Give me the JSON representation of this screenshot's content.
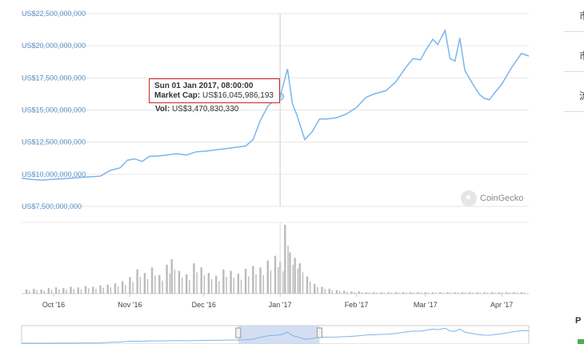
{
  "chart_data": {
    "type": "line",
    "title": "",
    "xlabel": "",
    "ylabel": "",
    "ylim": [
      7500000000,
      22500000000
    ],
    "yticks": [
      {
        "value": 22500000000,
        "label": "US$22,500,000,000"
      },
      {
        "value": 20000000000,
        "label": "US$20,000,000,000"
      },
      {
        "value": 17500000000,
        "label": "US$17,500,000,000"
      },
      {
        "value": 15000000000,
        "label": "US$15,000,000,000"
      },
      {
        "value": 12500000000,
        "label": "US$12,500,000,000"
      },
      {
        "value": 10000000000,
        "label": "US$10,000,000,000"
      },
      {
        "value": 7500000000,
        "label": "US$7,500,000,000"
      }
    ],
    "xrange": [
      "2016-09-18",
      "2017-04-12"
    ],
    "xticks": [
      {
        "date": "2016-10-01",
        "label": "Oct '16"
      },
      {
        "date": "2016-11-01",
        "label": "Nov '16"
      },
      {
        "date": "2016-12-01",
        "label": "Dec '16"
      },
      {
        "date": "2017-01-01",
        "label": "Jan '17"
      },
      {
        "date": "2017-02-01",
        "label": "Feb '17"
      },
      {
        "date": "2017-03-01",
        "label": "Mar '17"
      },
      {
        "date": "2017-04-01",
        "label": "Apr '17"
      }
    ],
    "crosshair_date": "2017-01-01",
    "series": [
      {
        "color": "#7cb5ec",
        "points": [
          [
            "2016-09-18",
            9700000000
          ],
          [
            "2016-09-22",
            9600000000
          ],
          [
            "2016-09-26",
            9550000000
          ],
          [
            "2016-09-30",
            9600000000
          ],
          [
            "2016-10-04",
            9650000000
          ],
          [
            "2016-10-08",
            9700000000
          ],
          [
            "2016-10-12",
            9750000000
          ],
          [
            "2016-10-16",
            9800000000
          ],
          [
            "2016-10-20",
            9850000000
          ],
          [
            "2016-10-24",
            10300000000
          ],
          [
            "2016-10-28",
            10500000000
          ],
          [
            "2016-10-31",
            11100000000
          ],
          [
            "2016-11-03",
            11200000000
          ],
          [
            "2016-11-06",
            11000000000
          ],
          [
            "2016-11-09",
            11400000000
          ],
          [
            "2016-11-12",
            11400000000
          ],
          [
            "2016-11-16",
            11500000000
          ],
          [
            "2016-11-20",
            11600000000
          ],
          [
            "2016-11-24",
            11500000000
          ],
          [
            "2016-11-28",
            11750000000
          ],
          [
            "2016-12-02",
            11800000000
          ],
          [
            "2016-12-06",
            11900000000
          ],
          [
            "2016-12-10",
            12000000000
          ],
          [
            "2016-12-14",
            12100000000
          ],
          [
            "2016-12-18",
            12200000000
          ],
          [
            "2016-12-21",
            12700000000
          ],
          [
            "2016-12-24",
            14200000000
          ],
          [
            "2016-12-27",
            15300000000
          ],
          [
            "2016-12-30",
            15800000000
          ],
          [
            "2017-01-01",
            16045986193
          ],
          [
            "2017-01-04",
            18200000000
          ],
          [
            "2017-01-06",
            15500000000
          ],
          [
            "2017-01-08",
            14500000000
          ],
          [
            "2017-01-11",
            12700000000
          ],
          [
            "2017-01-14",
            13300000000
          ],
          [
            "2017-01-17",
            14300000000
          ],
          [
            "2017-01-20",
            14300000000
          ],
          [
            "2017-01-24",
            14400000000
          ],
          [
            "2017-01-28",
            14700000000
          ],
          [
            "2017-02-01",
            15200000000
          ],
          [
            "2017-02-05",
            16000000000
          ],
          [
            "2017-02-09",
            16300000000
          ],
          [
            "2017-02-13",
            16500000000
          ],
          [
            "2017-02-17",
            17200000000
          ],
          [
            "2017-02-21",
            18300000000
          ],
          [
            "2017-02-24",
            19000000000
          ],
          [
            "2017-02-27",
            18900000000
          ],
          [
            "2017-03-01",
            19600000000
          ],
          [
            "2017-03-04",
            20500000000
          ],
          [
            "2017-03-06",
            20100000000
          ],
          [
            "2017-03-09",
            21200000000
          ],
          [
            "2017-03-11",
            19000000000
          ],
          [
            "2017-03-13",
            18800000000
          ],
          [
            "2017-03-15",
            20600000000
          ],
          [
            "2017-03-17",
            18100000000
          ],
          [
            "2017-03-20",
            17100000000
          ],
          [
            "2017-03-23",
            16200000000
          ],
          [
            "2017-03-25",
            15900000000
          ],
          [
            "2017-03-27",
            15800000000
          ],
          [
            "2017-03-29",
            16300000000
          ],
          [
            "2017-04-01",
            17000000000
          ],
          [
            "2017-04-05",
            18300000000
          ],
          [
            "2017-04-09",
            19400000000
          ],
          [
            "2017-04-12",
            19200000000
          ]
        ]
      }
    ],
    "volume": {
      "color": "#bbbbbb",
      "bars": [
        [
          "2016-09-20",
          0.06
        ],
        [
          "2016-09-23",
          0.07
        ],
        [
          "2016-09-26",
          0.06
        ],
        [
          "2016-09-29",
          0.08
        ],
        [
          "2016-10-02",
          0.09
        ],
        [
          "2016-10-05",
          0.08
        ],
        [
          "2016-10-08",
          0.1
        ],
        [
          "2016-10-11",
          0.09
        ],
        [
          "2016-10-14",
          0.11
        ],
        [
          "2016-10-17",
          0.1
        ],
        [
          "2016-10-20",
          0.12
        ],
        [
          "2016-10-23",
          0.13
        ],
        [
          "2016-10-26",
          0.15
        ],
        [
          "2016-10-29",
          0.18
        ],
        [
          "2016-11-01",
          0.24
        ],
        [
          "2016-11-04",
          0.35
        ],
        [
          "2016-11-07",
          0.3
        ],
        [
          "2016-11-10",
          0.38
        ],
        [
          "2016-11-13",
          0.27
        ],
        [
          "2016-11-16",
          0.42
        ],
        [
          "2016-11-18",
          0.5
        ],
        [
          "2016-11-21",
          0.33
        ],
        [
          "2016-11-24",
          0.28
        ],
        [
          "2016-11-27",
          0.44
        ],
        [
          "2016-11-30",
          0.38
        ],
        [
          "2016-12-03",
          0.3
        ],
        [
          "2016-12-06",
          0.26
        ],
        [
          "2016-12-09",
          0.35
        ],
        [
          "2016-12-12",
          0.33
        ],
        [
          "2016-12-15",
          0.29
        ],
        [
          "2016-12-18",
          0.36
        ],
        [
          "2016-12-21",
          0.4
        ],
        [
          "2016-12-24",
          0.38
        ],
        [
          "2016-12-27",
          0.48
        ],
        [
          "2016-12-30",
          0.55
        ],
        [
          "2017-01-01",
          0.46
        ],
        [
          "2017-01-03",
          1.0
        ],
        [
          "2017-01-05",
          0.6
        ],
        [
          "2017-01-07",
          0.52
        ],
        [
          "2017-01-09",
          0.44
        ],
        [
          "2017-01-12",
          0.25
        ],
        [
          "2017-01-15",
          0.14
        ],
        [
          "2017-01-18",
          0.1
        ],
        [
          "2017-01-21",
          0.07
        ],
        [
          "2017-01-24",
          0.05
        ],
        [
          "2017-01-27",
          0.04
        ],
        [
          "2017-01-30",
          0.03
        ],
        [
          "2017-02-02",
          0.03
        ],
        [
          "2017-02-05",
          0.02
        ],
        [
          "2017-02-08",
          0.02
        ],
        [
          "2017-02-11",
          0.02
        ],
        [
          "2017-02-14",
          0.02
        ],
        [
          "2017-02-17",
          0.02
        ],
        [
          "2017-02-20",
          0.02
        ],
        [
          "2017-02-23",
          0.02
        ],
        [
          "2017-02-26",
          0.02
        ],
        [
          "2017-03-01",
          0.02
        ],
        [
          "2017-03-04",
          0.02
        ],
        [
          "2017-03-07",
          0.02
        ],
        [
          "2017-03-10",
          0.02
        ],
        [
          "2017-03-13",
          0.02
        ],
        [
          "2017-03-16",
          0.02
        ],
        [
          "2017-03-19",
          0.02
        ],
        [
          "2017-03-22",
          0.02
        ],
        [
          "2017-03-25",
          0.02
        ],
        [
          "2017-03-28",
          0.02
        ],
        [
          "2017-03-31",
          0.02
        ],
        [
          "2017-04-03",
          0.02
        ],
        [
          "2017-04-06",
          0.02
        ],
        [
          "2017-04-09",
          0.02
        ]
      ]
    },
    "navigator": {
      "selected_range": [
        "2016-12-15",
        "2017-01-17"
      ]
    }
  },
  "tooltip": {
    "title": "Sun 01 Jan 2017, 08:00:00",
    "market_cap_label": "Market Cap:",
    "market_cap_value": "US$16,045,986,193",
    "vol_label": "Vol:",
    "vol_value": "US$3,470,830,330"
  },
  "brand": {
    "name": "CoinGecko",
    "icon": "coingecko-logo-icon"
  },
  "side_panel": {
    "items": [
      "市",
      "市",
      "流"
    ],
    "bottom_label": "P"
  }
}
